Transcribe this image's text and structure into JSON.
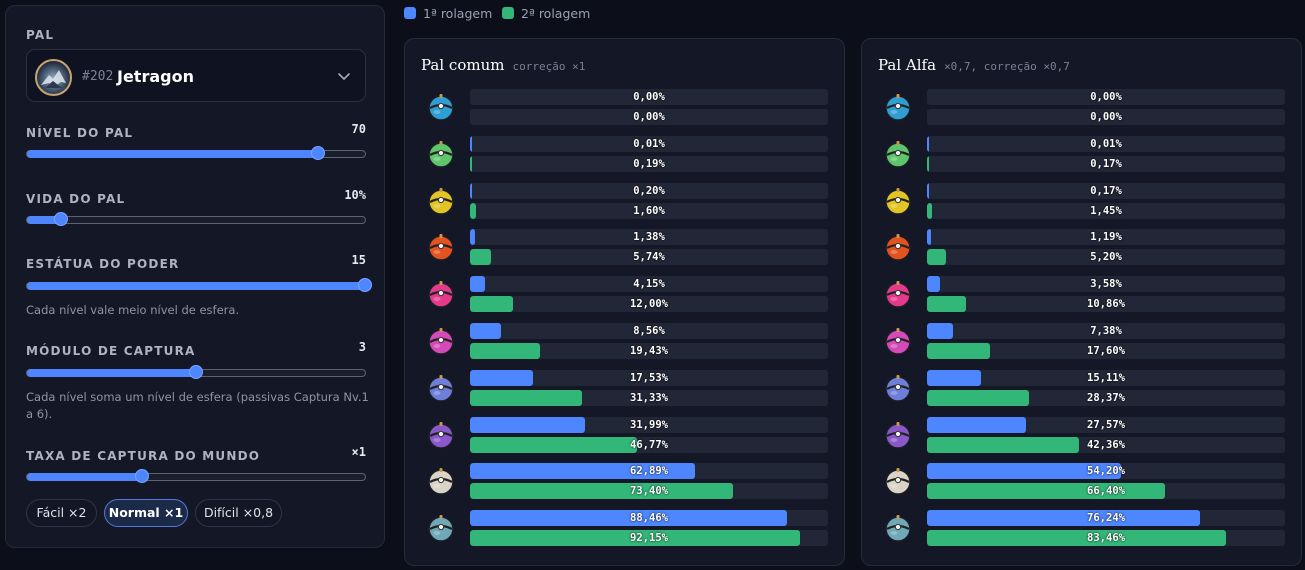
{
  "pal": {
    "label": "PAL",
    "number": "#202",
    "name": "Jetragon",
    "icon": "chevron-down-icon"
  },
  "controls": {
    "level": {
      "label": "NÍVEL DO PAL",
      "value": "70",
      "fraction": 0.86
    },
    "health": {
      "label": "VIDA DO PAL",
      "value": "10%",
      "fraction": 0.1
    },
    "statue": {
      "label": "ESTÁTUA DO PODER",
      "value": "15",
      "fraction": 1.0,
      "hint": "Cada nível vale meio nível de esfera."
    },
    "module": {
      "label": "MÓDULO DE CAPTURA",
      "value": "3",
      "fraction": 0.5,
      "hint": "Cada nível soma um nível de esfera (passivas Captura Nv.1 a 6)."
    },
    "world": {
      "label": "TAXA DE CAPTURA DO MUNDO",
      "value": "×1",
      "fraction": 0.34
    }
  },
  "presets": [
    {
      "label": "Fácil ×2",
      "active": false
    },
    {
      "label": "Normal ×1",
      "active": true
    },
    {
      "label": "Difícil ×0,8",
      "active": false
    }
  ],
  "legend": [
    {
      "label": "1ª rolagem",
      "color": "#4e86ff"
    },
    {
      "label": "2ª rolagem",
      "color": "#33b778"
    }
  ],
  "spheres": [
    {
      "name": "pal-sphere",
      "color": "#2f9fd3"
    },
    {
      "name": "mega-sphere",
      "color": "#5fc46a"
    },
    {
      "name": "giga-sphere",
      "color": "#e2c524"
    },
    {
      "name": "hyper-sphere",
      "color": "#e4531f"
    },
    {
      "name": "ultra-sphere",
      "color": "#e33a8c"
    },
    {
      "name": "legendary-sphere",
      "color": "#d44ab8"
    },
    {
      "name": "ultimate-sphere",
      "color": "#6d7fd8"
    },
    {
      "name": "exotic-sphere",
      "color": "#8a58c9"
    },
    {
      "name": "shiny-sphere",
      "color": "#d9d4c6"
    },
    {
      "name": "crystal-sphere",
      "color": "#6fa9b8"
    }
  ],
  "panels": [
    {
      "title": "Pal comum",
      "subtitle": "correção ×1",
      "rows": [
        {
          "r1": "0,00%",
          "r2": "0,00%",
          "v1": 0.0,
          "v2": 0.0
        },
        {
          "r1": "0,01%",
          "r2": "0,19%",
          "v1": 0.01,
          "v2": 0.19
        },
        {
          "r1": "0,20%",
          "r2": "1,60%",
          "v1": 0.2,
          "v2": 1.6
        },
        {
          "r1": "1,38%",
          "r2": "5,74%",
          "v1": 1.38,
          "v2": 5.74
        },
        {
          "r1": "4,15%",
          "r2": "12,00%",
          "v1": 4.15,
          "v2": 12.0
        },
        {
          "r1": "8,56%",
          "r2": "19,43%",
          "v1": 8.56,
          "v2": 19.43
        },
        {
          "r1": "17,53%",
          "r2": "31,33%",
          "v1": 17.53,
          "v2": 31.33
        },
        {
          "r1": "31,99%",
          "r2": "46,77%",
          "v1": 31.99,
          "v2": 46.77
        },
        {
          "r1": "62,89%",
          "r2": "73,40%",
          "v1": 62.89,
          "v2": 73.4
        },
        {
          "r1": "88,46%",
          "r2": "92,15%",
          "v1": 88.46,
          "v2": 92.15
        }
      ]
    },
    {
      "title": "Pal Alfa",
      "subtitle": "×0,7, correção ×0,7",
      "rows": [
        {
          "r1": "0,00%",
          "r2": "0,00%",
          "v1": 0.0,
          "v2": 0.0
        },
        {
          "r1": "0,01%",
          "r2": "0,17%",
          "v1": 0.01,
          "v2": 0.17
        },
        {
          "r1": "0,17%",
          "r2": "1,45%",
          "v1": 0.17,
          "v2": 1.45
        },
        {
          "r1": "1,19%",
          "r2": "5,20%",
          "v1": 1.19,
          "v2": 5.2
        },
        {
          "r1": "3,58%",
          "r2": "10,86%",
          "v1": 3.58,
          "v2": 10.86
        },
        {
          "r1": "7,38%",
          "r2": "17,60%",
          "v1": 7.38,
          "v2": 17.6
        },
        {
          "r1": "15,11%",
          "r2": "28,37%",
          "v1": 15.11,
          "v2": 28.37
        },
        {
          "r1": "27,57%",
          "r2": "42,36%",
          "v1": 27.57,
          "v2": 42.36
        },
        {
          "r1": "54,20%",
          "r2": "66,40%",
          "v1": 54.2,
          "v2": 66.4
        },
        {
          "r1": "76,24%",
          "r2": "83,46%",
          "v1": 76.24,
          "v2": 83.46
        }
      ]
    }
  ]
}
